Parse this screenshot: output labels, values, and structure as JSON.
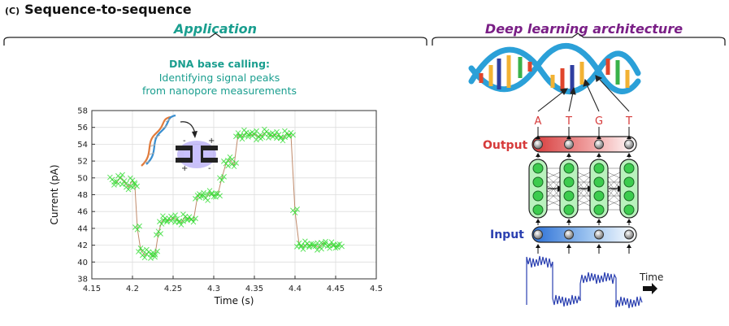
{
  "panel": {
    "tag": "(C)",
    "title": "Sequence-to-sequence"
  },
  "application": {
    "title": "Application",
    "caption_line1": "DNA base calling:",
    "caption_line2": "Identifying signal peaks",
    "caption_line3": "from nanopore measurements"
  },
  "architecture": {
    "title": "Deep learning architecture",
    "output_label": "Output",
    "input_label": "Input",
    "bases": [
      "A",
      "T",
      "G",
      "T"
    ],
    "time_label": "Time"
  },
  "colors": {
    "teal": "#1a9e8f",
    "purple": "#7a1f86",
    "output_red": "#d63a3a",
    "input_blue": "#2a3fb0",
    "node_green": "#3ccc4e",
    "scatter_green": "#33dd33",
    "step_line": "#c08a6a"
  },
  "chart_data": {
    "type": "scatter",
    "xlabel": "Time (s)",
    "ylabel": "Current (pA)",
    "xlim": [
      4.15,
      4.5
    ],
    "ylim": [
      38,
      58
    ],
    "xticks": [
      "4.15",
      "4.2",
      "4.25",
      "4.3",
      "4.35",
      "4.4",
      "4.45",
      "4.5"
    ],
    "yticks": [
      "38",
      "40",
      "42",
      "44",
      "46",
      "48",
      "50",
      "52",
      "54",
      "56",
      "58"
    ],
    "x": [
      4.175,
      4.18,
      4.185,
      4.19,
      4.195,
      4.2,
      4.203,
      4.206,
      4.21,
      4.215,
      4.22,
      4.225,
      4.228,
      4.232,
      4.236,
      4.24,
      4.245,
      4.25,
      4.255,
      4.26,
      4.265,
      4.27,
      4.275,
      4.28,
      4.285,
      4.29,
      4.295,
      4.3,
      4.305,
      4.31,
      4.315,
      4.32,
      4.325,
      4.33,
      4.335,
      4.34,
      4.345,
      4.35,
      4.355,
      4.36,
      4.365,
      4.37,
      4.375,
      4.38,
      4.385,
      4.39,
      4.395,
      4.4,
      4.405,
      4.41,
      4.415,
      4.42,
      4.425,
      4.43,
      4.435,
      4.44,
      4.445,
      4.45,
      4.455
    ],
    "y": [
      49.8,
      49.3,
      50.1,
      49.5,
      48.9,
      49.7,
      49.0,
      44.0,
      41.5,
      40.8,
      41.2,
      40.6,
      41.0,
      43.5,
      44.8,
      45.2,
      44.9,
      45.3,
      45.0,
      44.7,
      45.4,
      45.1,
      44.9,
      47.8,
      48.1,
      47.6,
      48.2,
      47.9,
      48.0,
      50.0,
      51.7,
      52.2,
      51.5,
      55.2,
      54.9,
      55.4,
      55.0,
      55.3,
      54.8,
      55.1,
      55.5,
      54.9,
      55.2,
      55.0,
      54.7,
      55.3,
      55.1,
      46.0,
      42.1,
      41.8,
      42.2,
      41.9,
      42.0,
      41.7,
      42.3,
      41.9,
      42.1,
      41.8,
      42.0
    ],
    "grid": true
  }
}
